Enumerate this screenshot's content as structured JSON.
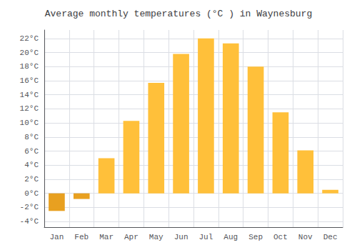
{
  "chart_data": {
    "type": "bar",
    "title": "Average monthly temperatures (°C ) in Waynesburg",
    "categories": [
      "Jan",
      "Feb",
      "Mar",
      "Apr",
      "May",
      "Jun",
      "Jul",
      "Aug",
      "Sep",
      "Oct",
      "Nov",
      "Dec"
    ],
    "values": [
      -2.5,
      -0.8,
      5.0,
      10.3,
      15.7,
      19.8,
      22.0,
      21.3,
      18.0,
      11.5,
      6.1,
      0.5
    ],
    "colors": [
      "#E8A020",
      "#E8A020",
      "#FFC03A",
      "#FFC03A",
      "#FFC03A",
      "#FFC03A",
      "#FFC03A",
      "#FFC03A",
      "#FFC03A",
      "#FFC03A",
      "#FFC03A",
      "#FFC03A"
    ],
    "ylim": [
      -4.8,
      23.2
    ],
    "yticks": [
      {
        "value": -4,
        "label": "-4°C"
      },
      {
        "value": -2,
        "label": "-2°C"
      },
      {
        "value": 0,
        "label": "0°C"
      },
      {
        "value": 2,
        "label": "2°C"
      },
      {
        "value": 4,
        "label": "4°C"
      },
      {
        "value": 6,
        "label": "6°C"
      },
      {
        "value": 8,
        "label": "8°C"
      },
      {
        "value": 10,
        "label": "10°C"
      },
      {
        "value": 12,
        "label": "12°C"
      },
      {
        "value": 14,
        "label": "14°C"
      },
      {
        "value": 16,
        "label": "16°C"
      },
      {
        "value": 18,
        "label": "18°C"
      },
      {
        "value": 20,
        "label": "20°C"
      },
      {
        "value": 22,
        "label": "22°C"
      }
    ],
    "grid": true
  }
}
